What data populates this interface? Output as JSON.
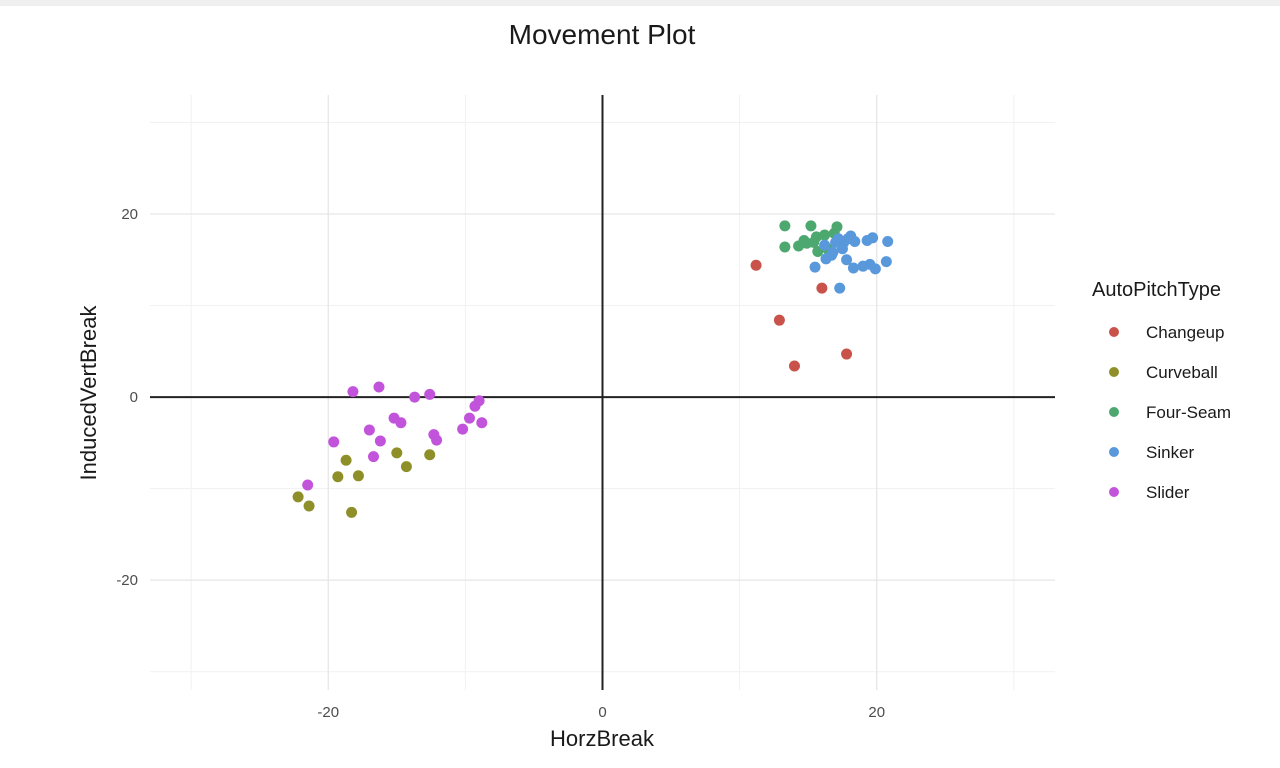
{
  "chart_data": {
    "type": "scatter",
    "title": "Movement Plot",
    "xlabel": "HorzBreak",
    "ylabel": "InducedVertBreak",
    "xlim": [
      -33,
      33
    ],
    "ylim": [
      -32,
      33
    ],
    "x_ticks": [
      -20,
      0,
      20
    ],
    "y_ticks": [
      -20,
      0,
      20
    ],
    "grid": true,
    "reference_lines": {
      "x": 0,
      "y": 0
    },
    "legend": {
      "title": "AutoPitchType",
      "position": "right"
    },
    "series": [
      {
        "name": "Changeup",
        "color": "#c9534a",
        "points": [
          [
            11.2,
            14.4
          ],
          [
            16.0,
            11.9
          ],
          [
            12.9,
            8.4
          ],
          [
            14.0,
            3.4
          ],
          [
            17.8,
            4.7
          ]
        ]
      },
      {
        "name": "Curveball",
        "color": "#8f8f2a",
        "points": [
          [
            -22.2,
            -10.9
          ],
          [
            -21.4,
            -11.9
          ],
          [
            -19.3,
            -8.7
          ],
          [
            -18.7,
            -6.9
          ],
          [
            -18.3,
            -12.6
          ],
          [
            -17.8,
            -8.6
          ],
          [
            -15.0,
            -6.1
          ],
          [
            -14.3,
            -7.6
          ],
          [
            -12.6,
            -6.3
          ]
        ]
      },
      {
        "name": "Four-Seam",
        "color": "#4da870",
        "points": [
          [
            13.3,
            18.7
          ],
          [
            15.2,
            18.7
          ],
          [
            17.1,
            18.6
          ],
          [
            13.3,
            16.4
          ],
          [
            14.3,
            16.5
          ],
          [
            14.7,
            17.1
          ],
          [
            15.6,
            17.5
          ],
          [
            16.2,
            17.7
          ],
          [
            16.4,
            16.2
          ],
          [
            15.7,
            15.9
          ],
          [
            16.9,
            17.9
          ],
          [
            15.4,
            16.9
          ],
          [
            14.9,
            16.8
          ]
        ]
      },
      {
        "name": "Sinker",
        "color": "#5a98dc",
        "points": [
          [
            15.5,
            14.2
          ],
          [
            16.3,
            15.1
          ],
          [
            16.8,
            15.8
          ],
          [
            17.0,
            16.9
          ],
          [
            17.2,
            17.3
          ],
          [
            17.6,
            16.9
          ],
          [
            17.9,
            17.3
          ],
          [
            18.1,
            17.6
          ],
          [
            18.4,
            17.0
          ],
          [
            17.8,
            15.0
          ],
          [
            18.3,
            14.1
          ],
          [
            19.0,
            14.3
          ],
          [
            19.5,
            14.5
          ],
          [
            19.9,
            14.0
          ],
          [
            19.3,
            17.1
          ],
          [
            19.7,
            17.4
          ],
          [
            20.7,
            14.8
          ],
          [
            20.8,
            17.0
          ],
          [
            17.3,
            11.9
          ],
          [
            16.7,
            15.5
          ],
          [
            17.5,
            16.2
          ],
          [
            16.2,
            16.6
          ]
        ]
      },
      {
        "name": "Slider",
        "color": "#c254db",
        "points": [
          [
            -21.5,
            -9.6
          ],
          [
            -19.6,
            -4.9
          ],
          [
            -18.2,
            0.6
          ],
          [
            -16.3,
            1.1
          ],
          [
            -17.0,
            -3.6
          ],
          [
            -16.7,
            -6.5
          ],
          [
            -16.2,
            -4.8
          ],
          [
            -15.2,
            -2.3
          ],
          [
            -14.7,
            -2.8
          ],
          [
            -13.7,
            0.0
          ],
          [
            -12.6,
            0.3
          ],
          [
            -12.3,
            -4.1
          ],
          [
            -12.1,
            -4.7
          ],
          [
            -10.2,
            -3.5
          ],
          [
            -9.7,
            -2.3
          ],
          [
            -9.3,
            -1.0
          ],
          [
            -9.0,
            -0.4
          ],
          [
            -8.8,
            -2.8
          ]
        ]
      }
    ]
  }
}
